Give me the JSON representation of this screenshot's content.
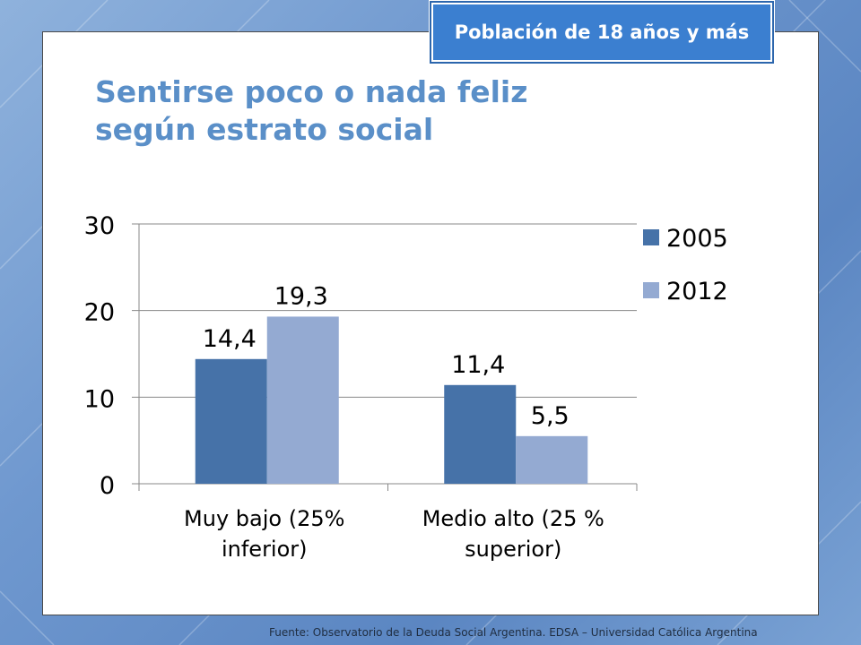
{
  "badge": {
    "text": "Población de 18 años y más"
  },
  "title": {
    "line1": "Sentirse poco o nada feliz",
    "line2": "según estrato social"
  },
  "source": {
    "text": "Fuente: Observatorio de la Deuda Social Argentina. EDSA – Universidad Católica Argentina"
  },
  "colors": {
    "series_2005": "#4672a8",
    "series_2012": "#94aad2",
    "title": "#5a8fc8",
    "badge": "#3b7fd0"
  },
  "chart_data": {
    "type": "bar",
    "categories": [
      [
        "Muy bajo (25%",
        "inferior)"
      ],
      [
        "Medio alto (25 %",
        "superior)"
      ]
    ],
    "series": [
      {
        "name": "2005",
        "values": [
          14.4,
          11.4
        ],
        "labels": [
          "14,4",
          "11,4"
        ],
        "color": "#4672a8"
      },
      {
        "name": "2012",
        "values": [
          19.3,
          5.5
        ],
        "labels": [
          "19,3",
          "5,5"
        ],
        "color": "#94aad2"
      }
    ],
    "yticks": [
      0,
      10,
      20,
      30
    ],
    "ylim": [
      0,
      30
    ],
    "grid": true,
    "legend": "right"
  }
}
